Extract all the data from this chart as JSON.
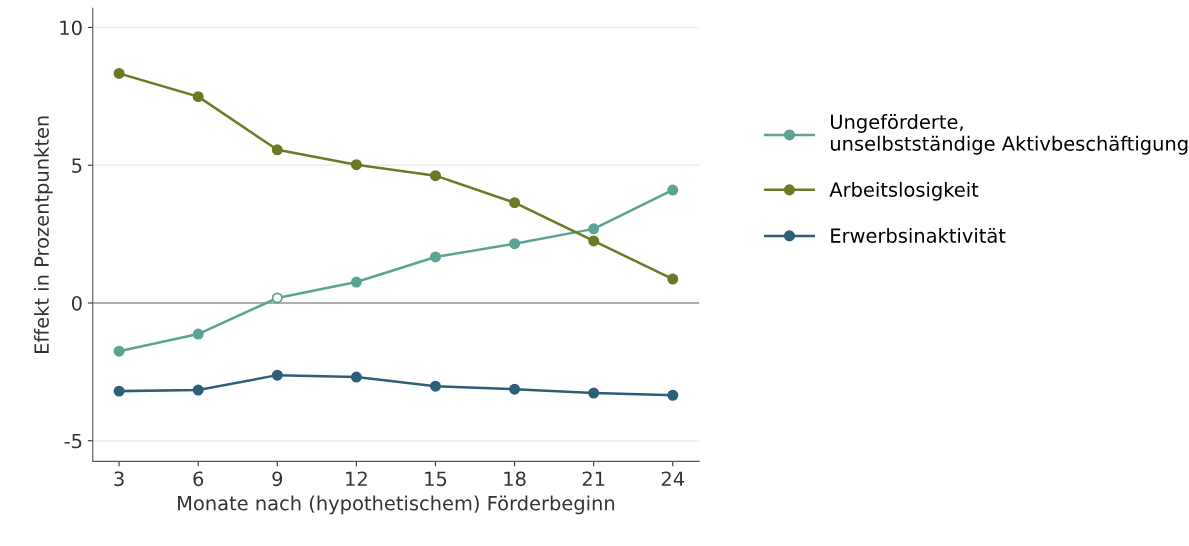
{
  "chart_data": {
    "type": "line",
    "xlabel": "Monate nach (hypothetischem) Förderbeginn",
    "ylabel": "Effekt in Prozentpunkten",
    "x": [
      3,
      6,
      9,
      12,
      15,
      18,
      21,
      24
    ],
    "series": [
      {
        "name": "Ungeförderte, unselbstständige Aktivbeschäftigung",
        "color": "#5ba393",
        "colors": [
          "#5ba393",
          "#5ba393",
          "#ffffff",
          "#5ba393",
          "#5ba393",
          "#5ba393",
          "#5ba393",
          "#5ba393"
        ],
        "values": [
          -1.75,
          -1.13,
          0.18,
          0.76,
          1.67,
          2.15,
          2.69,
          4.1
        ]
      },
      {
        "name": "Arbeitslosigkeit",
        "color": "#6b7a25",
        "values": [
          8.33,
          7.49,
          5.56,
          5.02,
          4.62,
          3.64,
          2.25,
          0.87
        ]
      },
      {
        "name": "Erwerbsinaktivität",
        "color": "#2e5f78",
        "values": [
          -3.2,
          -3.16,
          -2.62,
          -2.69,
          -3.02,
          -3.13,
          -3.27,
          -3.35
        ]
      }
    ],
    "xlim": [
      2,
      25
    ],
    "xticks": [
      3,
      6,
      9,
      12,
      15,
      18,
      21,
      24
    ],
    "ylim": [
      -5.75,
      10.7
    ],
    "yticks": [
      {
        "value": -5,
        "label": "-5"
      },
      0,
      5,
      10
    ],
    "ref_lines": [
      {
        "axis": "y",
        "value": 0,
        "color": "#999999"
      }
    ],
    "grid": "y",
    "legend": "right",
    "marker": "circle",
    "line_style": "solid"
  }
}
